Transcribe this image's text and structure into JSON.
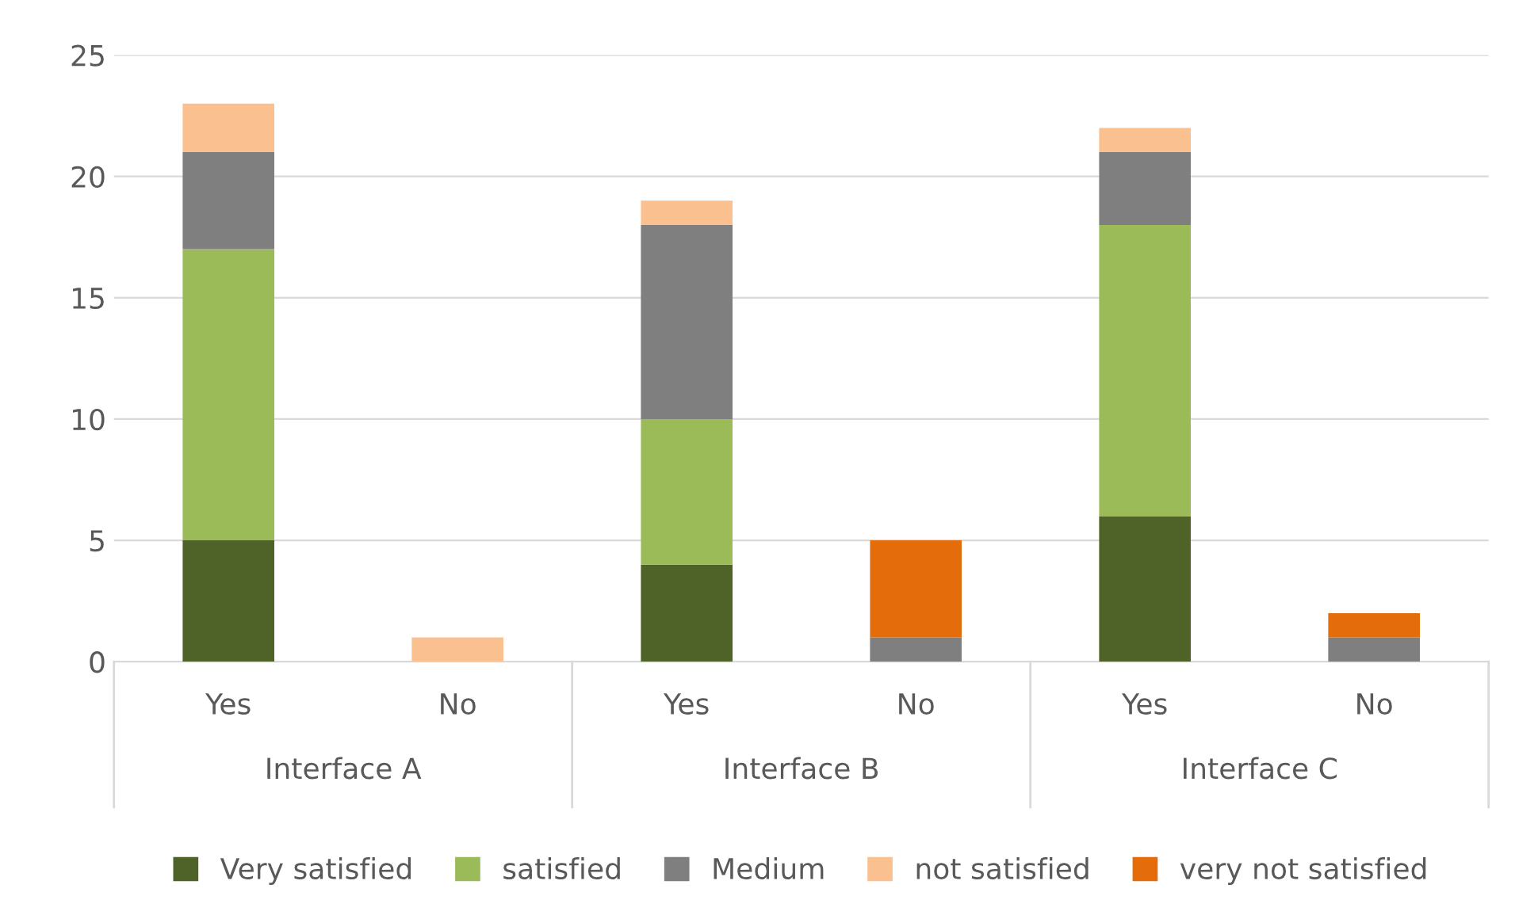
{
  "chart_data": {
    "type": "bar",
    "stacked": true,
    "categories": [
      "Yes",
      "No",
      "Yes",
      "No",
      "Yes",
      "No"
    ],
    "annotations": [
      "Interface A",
      "Interface B",
      "Interface C"
    ],
    "series": [
      {
        "name": "Very satisfied",
        "color": "#4f6228",
        "values": [
          5,
          null,
          4,
          null,
          6,
          null
        ]
      },
      {
        "name": "satisfied",
        "color": "#9bbb59",
        "values": [
          12,
          null,
          6,
          null,
          12,
          null
        ]
      },
      {
        "name": "Medium",
        "color": "#7f7f7f",
        "values": [
          4,
          null,
          8,
          1,
          3,
          1
        ]
      },
      {
        "name": "not satisfied",
        "color": "#fac090",
        "values": [
          2,
          1,
          1,
          null,
          1,
          null
        ]
      },
      {
        "name": "very not satisfied",
        "color": "#e46c0a",
        "values": [
          null,
          null,
          null,
          4,
          null,
          1
        ]
      }
    ],
    "ylim": [
      0,
      25
    ],
    "yticks": [
      0,
      5,
      10,
      15,
      20,
      25
    ],
    "grid": "y",
    "legend": "bottom"
  }
}
